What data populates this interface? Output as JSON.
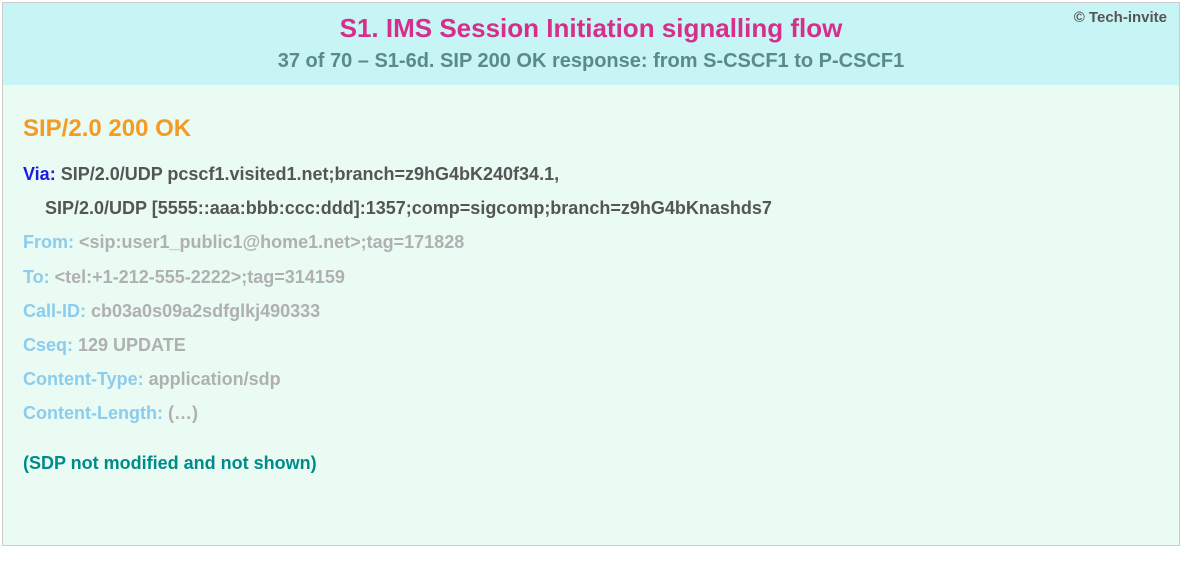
{
  "colors": {
    "header_bg": "#c7f5f5",
    "body_bg": "#e9fbf2",
    "title": "#d62e8a",
    "subtitle": "#5a8a8a",
    "copyright": "#555555",
    "status": "#f59a23",
    "via_name": "#1a1ae6",
    "via_val": "#555555",
    "dim_name": "#8cccee",
    "dim_val": "#b0b0b0",
    "note": "#008b8b"
  },
  "header": {
    "copyright": "© Tech-invite",
    "title": "S1. IMS Session Initiation signalling flow",
    "subtitle": "37 of 70 – S1-6d. SIP 200 OK response: from S-CSCF1 to P-CSCF1"
  },
  "sip": {
    "status_line": "SIP/2.0 200 OK",
    "headers": [
      {
        "name": "Via",
        "value": "SIP/2.0/UDP pcscf1.visited1.net;branch=z9hG4bK240f34.1,",
        "continuation": "SIP/2.0/UDP [5555::aaa:bbb:ccc:ddd]:1357;comp=sigcomp;branch=z9hG4bKnashds7",
        "emphasis": "strong"
      },
      {
        "name": "From",
        "value": "<sip:user1_public1@home1.net>;tag=171828",
        "emphasis": "dim"
      },
      {
        "name": "To",
        "value": "<tel:+1-212-555-2222>;tag=314159",
        "emphasis": "dim"
      },
      {
        "name": "Call-ID",
        "value": "cb03a0s09a2sdfglkj490333",
        "emphasis": "dim"
      },
      {
        "name": "Cseq",
        "value": "129 UPDATE",
        "emphasis": "dim"
      },
      {
        "name": "Content-Type",
        "value": "application/sdp",
        "emphasis": "dim"
      },
      {
        "name": "Content-Length",
        "value": "(…)",
        "emphasis": "dim"
      }
    ],
    "note": "(SDP not modified and not shown)"
  }
}
